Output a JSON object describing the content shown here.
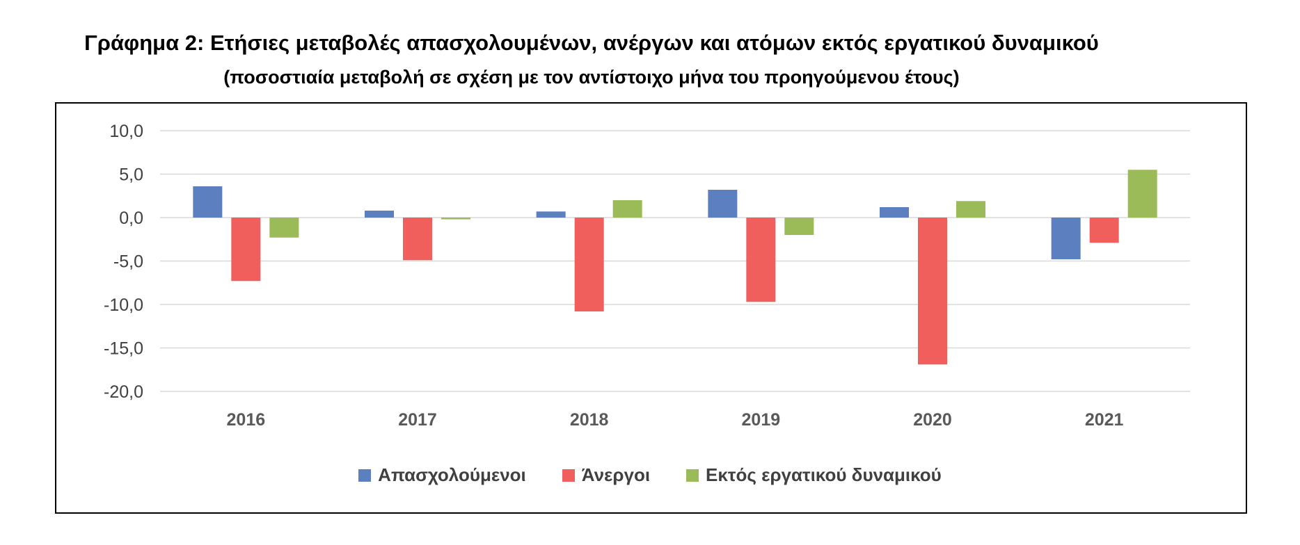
{
  "title": "Γράφημα 2: Ετήσιες μεταβολές απασχολουμένων, ανέργων και ατόμων εκτός εργατικού δυναμικού",
  "subtitle": "(ποσοστιαία μεταβολή σε σχέση με τον αντίστοιχο μήνα του προηγούμενου έτους)",
  "chart_data": {
    "type": "bar",
    "categories": [
      "2016",
      "2017",
      "2018",
      "2019",
      "2020",
      "2021"
    ],
    "series": [
      {
        "name": "Απασχολούμενοι",
        "color": "#5B7FBF",
        "values": [
          3.6,
          0.8,
          0.7,
          3.2,
          1.2,
          -4.8
        ]
      },
      {
        "name": "Άνεργοι",
        "color": "#F05F5B",
        "values": [
          -7.3,
          -4.9,
          -10.8,
          -9.7,
          -16.9,
          -2.9
        ]
      },
      {
        "name": "Εκτός εργατικού δυναμικού",
        "color": "#9BBB59",
        "values": [
          -2.3,
          -0.2,
          2.0,
          -2.0,
          1.9,
          5.5
        ]
      }
    ],
    "yticks": [
      "10,0",
      "5,0",
      "0,0",
      "-5,0",
      "-10,0",
      "-15,0",
      "-20,0"
    ],
    "ylim": [
      -20,
      10
    ],
    "grid": true,
    "legend_position": "bottom"
  }
}
